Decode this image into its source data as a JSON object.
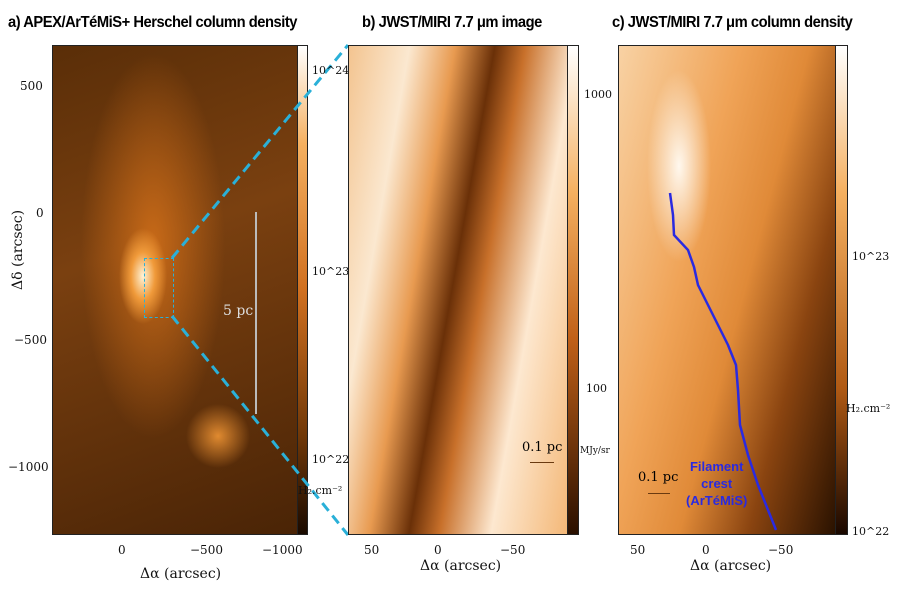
{
  "panels": {
    "a": {
      "title": "a) APEX/ArTéMiS+ Herschel  column density",
      "yticks": [
        "500",
        "0",
        "−500",
        "−1000"
      ],
      "xticks": [
        "0",
        "−500",
        "−1000"
      ],
      "xlabel": "Δα (arcsec)",
      "ylabel": "Δδ (arcsec)",
      "cbar_ticks": [
        "10^24",
        "10^23",
        "10^22"
      ],
      "cbar_unit": "H₂.cm⁻²",
      "scalebar": "5 pc"
    },
    "b": {
      "title": "b) JWST/MIRI 7.7 μm image",
      "xticks": [
        "50",
        "0",
        "−50"
      ],
      "xlabel": "Δα (arcsec)",
      "cbar_ticks": [
        "1000",
        "100"
      ],
      "cbar_unit": "MJy/sr",
      "scalebar": "0.1 pc"
    },
    "c": {
      "title": "c) JWST/MIRI 7.7 μm column density",
      "xticks": [
        "50",
        "0",
        "−50"
      ],
      "xlabel": "Δα (arcsec)",
      "cbar_ticks": [
        "10^23",
        "10^22"
      ],
      "cbar_unit": "H₂.cm⁻²",
      "scalebar": "0.1 pc",
      "annotation": [
        "Filament",
        "crest",
        "(ArTéMiS)"
      ]
    }
  },
  "colors": {
    "crest": "#2a2ae0",
    "zoom_lines": "#2ab0d8",
    "orange": "#e07a20"
  }
}
